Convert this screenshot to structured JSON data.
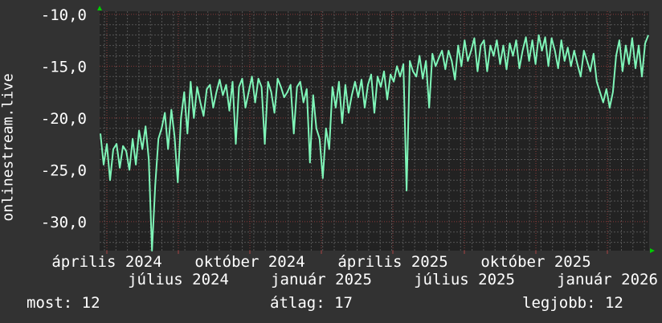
{
  "chart_data": {
    "type": "line",
    "ylabel": "onlinestream.live",
    "ylim": [
      -32.8,
      -9.7
    ],
    "y_ticks": [
      "-10,0",
      "-15,0",
      "-20,0",
      "-25,0",
      "-30,0"
    ],
    "y_tick_values": [
      -10,
      -15,
      -20,
      -25,
      -30
    ],
    "x_tick_labels": [
      "április 2024",
      "július 2024",
      "október 2024",
      "január 2025",
      "április 2025",
      "július 2025",
      "október 2025",
      "január 2026"
    ],
    "grid": true,
    "line_color": "#7ff5b8",
    "plot_background": "#222222",
    "values": [
      -21.5,
      -24.5,
      -22.5,
      -26,
      -23,
      -22.5,
      -24.8,
      -22.7,
      -23.2,
      -25,
      -22,
      -24.5,
      -21.2,
      -23,
      -20.8,
      -24,
      -32.8,
      -26.5,
      -22,
      -21,
      -19.5,
      -23,
      -19.2,
      -21.8,
      -26.2,
      -20,
      -17.5,
      -21.5,
      -16.5,
      -20,
      -17,
      -18.5,
      -19.8,
      -17.2,
      -16.8,
      -19,
      -17.5,
      -16.3,
      -17.8,
      -16.8,
      -19.3,
      -16.5,
      -22.5,
      -17,
      -16.2,
      -19,
      -17.5,
      -16,
      -18.5,
      -16.2,
      -17,
      -22.5,
      -16.5,
      -17.5,
      -19.5,
      -16.2,
      -17,
      -18,
      -17.5,
      -16.8,
      -21.5,
      -17,
      -16.5,
      -18.5,
      -17.2,
      -24.3,
      -17.8,
      -21,
      -22,
      -25.8,
      -21,
      -23,
      -17,
      -19,
      -16.5,
      -20.5,
      -16.8,
      -19.5,
      -17.8,
      -16.5,
      -18,
      -16.3,
      -19,
      -16.8,
      -15.8,
      -19.5,
      -16,
      -17,
      -15.5,
      -18.2,
      -15.8,
      -16.5,
      -15,
      -16,
      -14.8,
      -27,
      -14.5,
      -15.5,
      -16,
      -14,
      -16.2,
      -14.5,
      -19,
      -13.8,
      -15,
      -14.2,
      -13.5,
      -15.3,
      -13.5,
      -14.5,
      -16.3,
      -13,
      -15,
      -12.5,
      -14.5,
      -13.5,
      -12.3,
      -15.5,
      -13,
      -12.5,
      -15.5,
      -13,
      -14,
      -12.5,
      -14.8,
      -13,
      -15.3,
      -12.8,
      -14,
      -12.5,
      -15.2,
      -13.5,
      -12.2,
      -14.5,
      -12.5,
      -14.8,
      -12,
      -13.5,
      -12.2,
      -15,
      -12.3,
      -13.5,
      -15.2,
      -12.5,
      -14.5,
      -13.2,
      -15,
      -13.5,
      -14.8,
      -16,
      -13.5,
      -14.5,
      -15.5,
      -13.8,
      -16.5,
      -17.5,
      -18.5,
      -17.2,
      -19,
      -17.5,
      -14,
      -12.5,
      -15.5,
      -13,
      -14.8,
      -12.3,
      -15.2,
      -13,
      -16,
      -12.8,
      -12
    ]
  },
  "footer": {
    "last": "most: 12",
    "average": "átlag: 17",
    "max": "legjobb: 12"
  }
}
